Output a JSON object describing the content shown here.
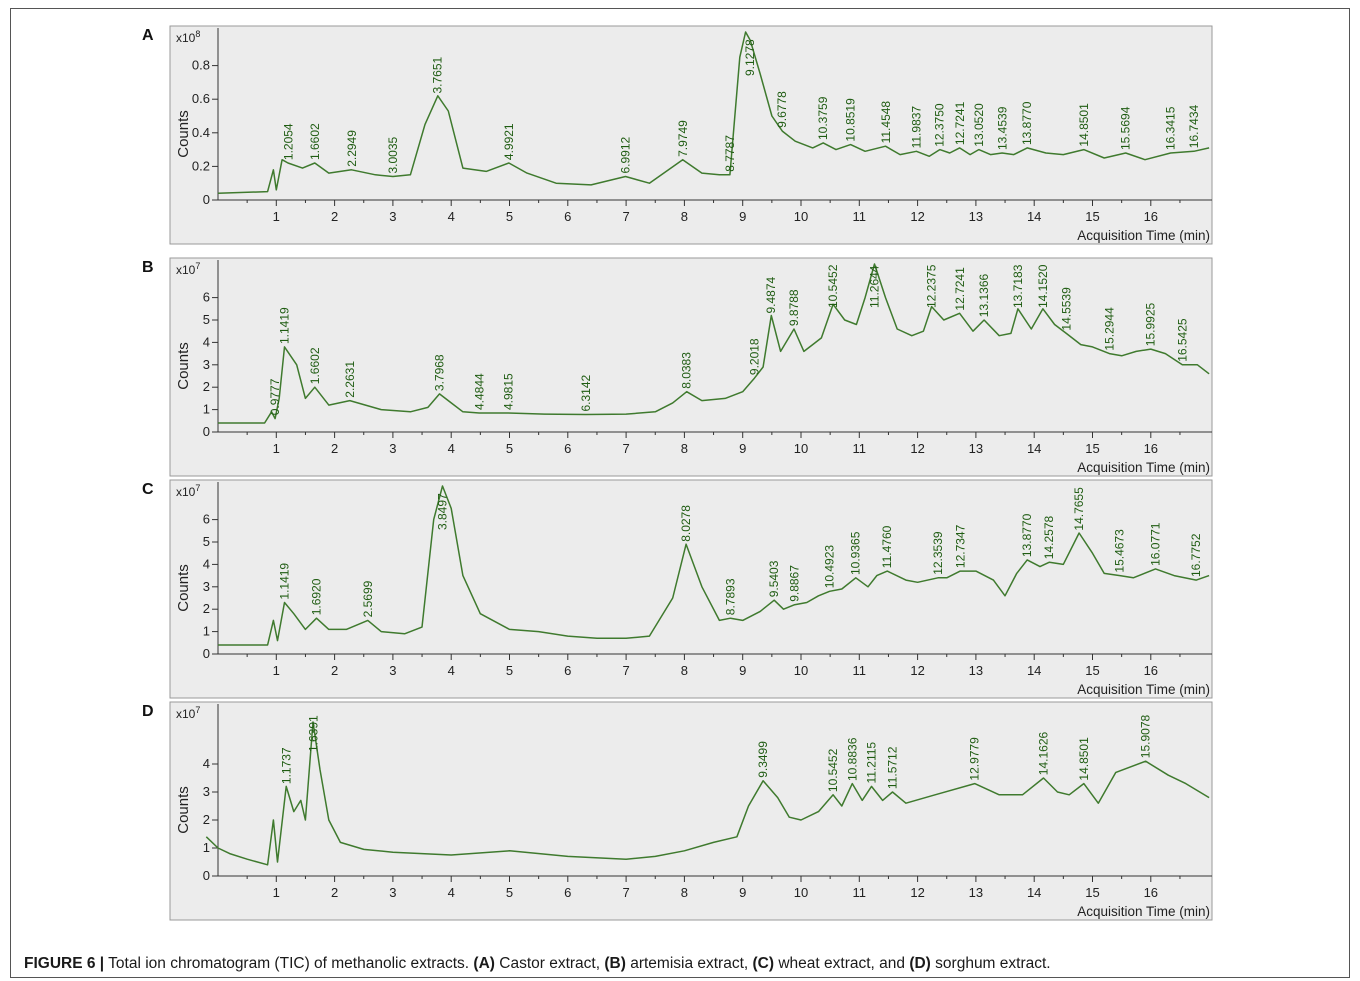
{
  "caption": {
    "figure_label": "FIGURE 6 |",
    "text_1": " Total ion chromatogram (TIC) of methanolic extracts. ",
    "label_a": "(A)",
    "text_a": " Castor extract, ",
    "label_b": "(B)",
    "text_b": " artemisia extract, ",
    "label_c": "(C)",
    "text_c": " wheat extract, and ",
    "label_d": "(D)",
    "text_d": " sorghum extract."
  },
  "colors": {
    "trace": "#3f7a2e",
    "peak_label": "#1f5c12",
    "plot_bg": "#ececec",
    "axis": "#333333"
  },
  "chart_data": [
    {
      "panel": "A",
      "type": "line",
      "title": "",
      "xlabel": "Acquisition Time (min)",
      "ylabel": "Counts",
      "y_multiplier": "x10^8",
      "xlim": [
        0,
        17
      ],
      "ylim": [
        0,
        1.0
      ],
      "xticks": [
        1,
        2,
        3,
        4,
        5,
        6,
        7,
        8,
        9,
        10,
        11,
        12,
        13,
        14,
        15,
        16
      ],
      "yticks": [
        0,
        0.2,
        0.4,
        0.6,
        0.8
      ],
      "ytick_labels": [
        "0",
        "0.2",
        "0.4",
        "0.6",
        "0.8"
      ],
      "grid": false,
      "series": [
        {
          "x": [
            0,
            0.85,
            0.95,
            1.0,
            1.1,
            1.2,
            1.45,
            1.66,
            1.9,
            2.29,
            2.7,
            3.0,
            3.3,
            3.55,
            3.77,
            3.95,
            4.2,
            4.6,
            4.99,
            5.3,
            5.8,
            6.4,
            6.99,
            7.4,
            7.97,
            8.3,
            8.6,
            8.78,
            8.95,
            9.05,
            9.13,
            9.3,
            9.5,
            9.68,
            9.9,
            10.2,
            10.38,
            10.6,
            10.85,
            11.1,
            11.45,
            11.7,
            11.98,
            12.2,
            12.38,
            12.55,
            12.72,
            12.9,
            13.05,
            13.25,
            13.45,
            13.65,
            13.88,
            14.2,
            14.5,
            14.85,
            15.2,
            15.57,
            15.9,
            16.34,
            16.74,
            17.0
          ],
          "y": [
            0.04,
            0.05,
            0.18,
            0.06,
            0.24,
            0.22,
            0.19,
            0.22,
            0.16,
            0.18,
            0.15,
            0.14,
            0.15,
            0.45,
            0.62,
            0.53,
            0.19,
            0.17,
            0.22,
            0.16,
            0.1,
            0.09,
            0.14,
            0.1,
            0.24,
            0.16,
            0.15,
            0.15,
            0.85,
            1.0,
            0.95,
            0.75,
            0.5,
            0.41,
            0.35,
            0.31,
            0.34,
            0.3,
            0.33,
            0.29,
            0.32,
            0.27,
            0.29,
            0.26,
            0.3,
            0.28,
            0.31,
            0.27,
            0.3,
            0.27,
            0.28,
            0.27,
            0.31,
            0.28,
            0.27,
            0.3,
            0.25,
            0.28,
            0.24,
            0.28,
            0.29,
            0.31
          ]
        }
      ],
      "peak_labels": [
        {
          "x": 1.2054,
          "text": "1.2054"
        },
        {
          "x": 1.6602,
          "text": "1.6602"
        },
        {
          "x": 2.2949,
          "text": "2.2949"
        },
        {
          "x": 3.0035,
          "text": "3.0035"
        },
        {
          "x": 3.7651,
          "text": "3.7651"
        },
        {
          "x": 4.9921,
          "text": "4.9921"
        },
        {
          "x": 6.9912,
          "text": "6.9912"
        },
        {
          "x": 7.9749,
          "text": "7.9749"
        },
        {
          "x": 8.7787,
          "text": "8.7787"
        },
        {
          "x": 9.1278,
          "text": "9.1278"
        },
        {
          "x": 9.6778,
          "text": "9.6778"
        },
        {
          "x": 10.3759,
          "text": "10.3759"
        },
        {
          "x": 10.8519,
          "text": "10.8519"
        },
        {
          "x": 11.4548,
          "text": "11.4548"
        },
        {
          "x": 11.9837,
          "text": "11.9837"
        },
        {
          "x": 12.375,
          "text": "12.3750"
        },
        {
          "x": 12.7241,
          "text": "12.7241"
        },
        {
          "x": 13.052,
          "text": "13.0520"
        },
        {
          "x": 13.4539,
          "text": "13.4539"
        },
        {
          "x": 13.877,
          "text": "13.8770"
        },
        {
          "x": 14.8501,
          "text": "14.8501"
        },
        {
          "x": 15.5694,
          "text": "15.5694"
        },
        {
          "x": 16.3415,
          "text": "16.3415"
        },
        {
          "x": 16.7434,
          "text": "16.7434"
        }
      ]
    },
    {
      "panel": "B",
      "type": "line",
      "title": "",
      "xlabel": "Acquisition Time (min)",
      "ylabel": "Counts",
      "y_multiplier": "x10^7",
      "xlim": [
        0,
        17
      ],
      "ylim": [
        0,
        7.5
      ],
      "xticks": [
        1,
        2,
        3,
        4,
        5,
        6,
        7,
        8,
        9,
        10,
        11,
        12,
        13,
        14,
        15,
        16
      ],
      "yticks": [
        0,
        1,
        2,
        3,
        4,
        5,
        6
      ],
      "ytick_labels": [
        "0",
        "1",
        "2",
        "3",
        "4",
        "5",
        "6"
      ],
      "grid": false,
      "series": [
        {
          "x": [
            0,
            0.8,
            0.92,
            0.98,
            1.05,
            1.14,
            1.35,
            1.5,
            1.66,
            1.9,
            2.26,
            2.8,
            3.3,
            3.6,
            3.8,
            4.0,
            4.2,
            4.48,
            4.98,
            5.6,
            6.31,
            7.0,
            7.5,
            7.8,
            8.04,
            8.3,
            8.7,
            9.0,
            9.2,
            9.35,
            9.49,
            9.65,
            9.88,
            10.05,
            10.2,
            10.35,
            10.55,
            10.75,
            10.95,
            11.1,
            11.26,
            11.45,
            11.65,
            11.9,
            12.1,
            12.24,
            12.45,
            12.72,
            12.95,
            13.14,
            13.4,
            13.6,
            13.72,
            13.95,
            14.15,
            14.35,
            14.55,
            14.8,
            15.0,
            15.29,
            15.5,
            15.75,
            16.0,
            16.25,
            16.54,
            16.8,
            17.0
          ],
          "y": [
            0.4,
            0.4,
            0.9,
            0.6,
            1.5,
            3.8,
            3.0,
            1.5,
            2.0,
            1.2,
            1.4,
            1.0,
            0.9,
            1.1,
            1.7,
            1.3,
            0.9,
            0.85,
            0.85,
            0.8,
            0.78,
            0.8,
            0.9,
            1.3,
            1.8,
            1.4,
            1.5,
            1.8,
            2.4,
            2.9,
            5.2,
            3.6,
            4.6,
            3.6,
            3.9,
            4.2,
            5.7,
            5.0,
            4.8,
            6.0,
            7.5,
            6.0,
            4.6,
            4.3,
            4.5,
            5.6,
            5.0,
            5.3,
            4.5,
            5.0,
            4.3,
            4.4,
            5.5,
            4.6,
            5.5,
            4.8,
            4.4,
            3.9,
            3.8,
            3.5,
            3.4,
            3.6,
            3.7,
            3.5,
            3.0,
            3.0,
            2.6
          ]
        }
      ],
      "peak_labels": [
        {
          "x": 0.9777,
          "text": "0.9777"
        },
        {
          "x": 1.1419,
          "text": "1.1419"
        },
        {
          "x": 1.6602,
          "text": "1.6602"
        },
        {
          "x": 2.2631,
          "text": "2.2631"
        },
        {
          "x": 3.7968,
          "text": "3.7968"
        },
        {
          "x": 4.4844,
          "text": "4.4844"
        },
        {
          "x": 4.9815,
          "text": "4.9815"
        },
        {
          "x": 6.3142,
          "text": "6.3142"
        },
        {
          "x": 8.0383,
          "text": "8.0383"
        },
        {
          "x": 9.2018,
          "text": "9.2018"
        },
        {
          "x": 9.4874,
          "text": "9.4874"
        },
        {
          "x": 9.8788,
          "text": "9.8788"
        },
        {
          "x": 10.5452,
          "text": "10.5452"
        },
        {
          "x": 11.2644,
          "text": "11.2644"
        },
        {
          "x": 12.2375,
          "text": "12.2375"
        },
        {
          "x": 12.7241,
          "text": "12.7241"
        },
        {
          "x": 13.1366,
          "text": "13.1366"
        },
        {
          "x": 13.7183,
          "text": "13.7183"
        },
        {
          "x": 14.152,
          "text": "14.1520"
        },
        {
          "x": 14.5539,
          "text": "14.5539"
        },
        {
          "x": 15.2944,
          "text": "15.2944"
        },
        {
          "x": 15.9925,
          "text": "15.9925"
        },
        {
          "x": 16.5425,
          "text": "16.5425"
        }
      ]
    },
    {
      "panel": "C",
      "type": "line",
      "title": "",
      "xlabel": "Acquisition Time (min)",
      "ylabel": "Counts",
      "y_multiplier": "x10^7",
      "xlim": [
        0,
        17
      ],
      "ylim": [
        0,
        7.5
      ],
      "xticks": [
        1,
        2,
        3,
        4,
        5,
        6,
        7,
        8,
        9,
        10,
        11,
        12,
        13,
        14,
        15,
        16
      ],
      "yticks": [
        0,
        1,
        2,
        3,
        4,
        5,
        6
      ],
      "ytick_labels": [
        "0",
        "1",
        "2",
        "3",
        "4",
        "5",
        "6"
      ],
      "grid": false,
      "series": [
        {
          "x": [
            0,
            0.85,
            0.95,
            1.02,
            1.14,
            1.3,
            1.5,
            1.69,
            1.9,
            2.2,
            2.57,
            2.8,
            3.2,
            3.5,
            3.7,
            3.85,
            4.0,
            4.2,
            4.5,
            5.0,
            5.5,
            6.0,
            6.5,
            7.0,
            7.4,
            7.8,
            8.03,
            8.3,
            8.6,
            8.79,
            9.0,
            9.3,
            9.54,
            9.7,
            9.89,
            10.1,
            10.3,
            10.49,
            10.7,
            10.94,
            11.15,
            11.3,
            11.48,
            11.8,
            12.0,
            12.35,
            12.5,
            12.73,
            13.0,
            13.3,
            13.5,
            13.7,
            13.88,
            14.1,
            14.26,
            14.5,
            14.77,
            15.0,
            15.2,
            15.47,
            15.7,
            16.08,
            16.4,
            16.78,
            17.0
          ],
          "y": [
            0.4,
            0.4,
            1.5,
            0.6,
            2.3,
            1.8,
            1.1,
            1.6,
            1.1,
            1.1,
            1.5,
            1.0,
            0.9,
            1.2,
            6.0,
            7.5,
            6.5,
            3.5,
            1.8,
            1.1,
            1.0,
            0.8,
            0.7,
            0.7,
            0.8,
            2.5,
            4.9,
            3.0,
            1.5,
            1.6,
            1.5,
            1.9,
            2.4,
            2.0,
            2.2,
            2.3,
            2.6,
            2.8,
            2.9,
            3.4,
            3.0,
            3.5,
            3.7,
            3.3,
            3.2,
            3.4,
            3.4,
            3.7,
            3.7,
            3.3,
            2.6,
            3.6,
            4.2,
            3.9,
            4.1,
            4.0,
            5.4,
            4.5,
            3.6,
            3.5,
            3.4,
            3.8,
            3.5,
            3.3,
            3.5
          ]
        }
      ],
      "peak_labels": [
        {
          "x": 1.1419,
          "text": "1.1419"
        },
        {
          "x": 1.692,
          "text": "1.6920"
        },
        {
          "x": 2.5699,
          "text": "2.5699"
        },
        {
          "x": 3.8497,
          "text": "3.8497"
        },
        {
          "x": 8.0278,
          "text": "8.0278"
        },
        {
          "x": 8.7893,
          "text": "8.7893"
        },
        {
          "x": 9.5403,
          "text": "9.5403"
        },
        {
          "x": 9.8867,
          "text": "9.8867"
        },
        {
          "x": 10.4923,
          "text": "10.4923"
        },
        {
          "x": 10.9365,
          "text": "10.9365"
        },
        {
          "x": 11.476,
          "text": "11.4760"
        },
        {
          "x": 12.3539,
          "text": "12.3539"
        },
        {
          "x": 12.7347,
          "text": "12.7347"
        },
        {
          "x": 13.877,
          "text": "13.8770"
        },
        {
          "x": 14.2578,
          "text": "14.2578"
        },
        {
          "x": 14.7655,
          "text": "14.7655"
        },
        {
          "x": 15.4673,
          "text": "15.4673"
        },
        {
          "x": 16.0771,
          "text": "16.0771"
        },
        {
          "x": 16.7752,
          "text": "16.7752"
        }
      ]
    },
    {
      "panel": "D",
      "type": "line",
      "title": "",
      "xlabel": "Acquisition Time (min)",
      "ylabel": "Counts",
      "y_multiplier": "x10^7",
      "xlim": [
        0,
        17
      ],
      "ylim": [
        0,
        6
      ],
      "xticks": [
        1,
        2,
        3,
        4,
        5,
        6,
        7,
        8,
        9,
        10,
        11,
        12,
        13,
        14,
        15,
        16
      ],
      "yticks": [
        0,
        1,
        2,
        3,
        4
      ],
      "ytick_labels": [
        "0",
        "1",
        "2",
        "3",
        "4"
      ],
      "grid": false,
      "series": [
        {
          "x": [
            -0.2,
            0.0,
            0.2,
            0.5,
            0.85,
            0.95,
            1.02,
            1.17,
            1.3,
            1.42,
            1.5,
            1.63,
            1.75,
            1.9,
            2.1,
            2.5,
            3.0,
            4.0,
            5.0,
            6.0,
            7.0,
            7.5,
            8.0,
            8.5,
            8.9,
            9.1,
            9.35,
            9.6,
            9.8,
            10.0,
            10.3,
            10.55,
            10.7,
            10.88,
            11.05,
            11.21,
            11.4,
            11.57,
            11.8,
            12.3,
            12.98,
            13.4,
            13.8,
            14.16,
            14.4,
            14.6,
            14.85,
            15.1,
            15.4,
            15.91,
            16.3,
            16.6,
            17.0
          ],
          "y": [
            1.4,
            1.0,
            0.8,
            0.6,
            0.4,
            2.0,
            0.5,
            3.2,
            2.3,
            2.7,
            2.0,
            5.5,
            3.8,
            2.0,
            1.2,
            0.95,
            0.85,
            0.75,
            0.9,
            0.7,
            0.6,
            0.7,
            0.9,
            1.2,
            1.4,
            2.5,
            3.4,
            2.8,
            2.1,
            2.0,
            2.3,
            2.9,
            2.5,
            3.3,
            2.7,
            3.2,
            2.7,
            3.0,
            2.6,
            2.9,
            3.3,
            2.9,
            2.9,
            3.5,
            3.0,
            2.9,
            3.3,
            2.6,
            3.7,
            4.1,
            3.6,
            3.3,
            2.8
          ]
        }
      ],
      "peak_labels": [
        {
          "x": 1.1737,
          "text": "1.1737"
        },
        {
          "x": 1.6391,
          "text": "1.6391"
        },
        {
          "x": 9.3499,
          "text": "9.3499"
        },
        {
          "x": 10.5452,
          "text": "10.5452"
        },
        {
          "x": 10.8836,
          "text": "10.8836"
        },
        {
          "x": 11.2115,
          "text": "11.2115"
        },
        {
          "x": 11.5712,
          "text": "11.5712"
        },
        {
          "x": 12.9779,
          "text": "12.9779"
        },
        {
          "x": 14.1626,
          "text": "14.1626"
        },
        {
          "x": 14.8501,
          "text": "14.8501"
        },
        {
          "x": 15.9078,
          "text": "15.9078"
        }
      ]
    }
  ]
}
